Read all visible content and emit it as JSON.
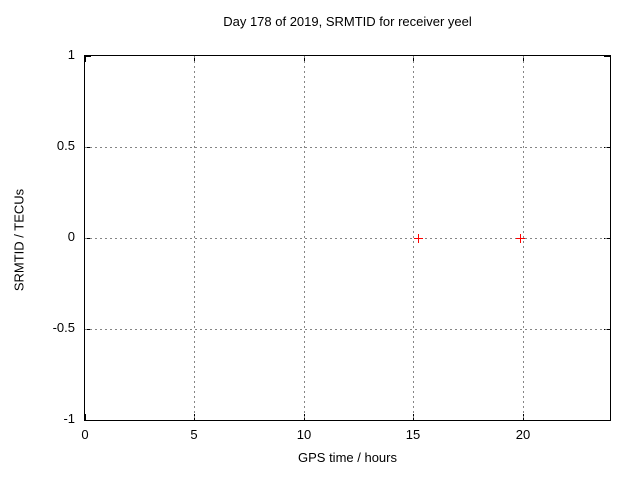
{
  "chart_data": {
    "type": "scatter",
    "title": "Day 178 of 2019, SRMTID for receiver yeel",
    "xlabel": "GPS time / hours",
    "ylabel": "SRMTID / TECUs",
    "xlim": [
      0,
      24
    ],
    "ylim": [
      -1,
      1
    ],
    "xticks": [
      0,
      5,
      10,
      15,
      20
    ],
    "yticks": [
      -1,
      -0.5,
      0,
      0.5,
      1
    ],
    "grid": true,
    "grid_style": "dashed",
    "legend": "none",
    "series": [
      {
        "name": "SRMTID",
        "marker": "plus",
        "color": "#ff0000",
        "points": [
          [
            15.2,
            0
          ],
          [
            19.9,
            0
          ]
        ]
      }
    ],
    "colors": {
      "background": "#ffffff",
      "axis": "#000000",
      "grid": "#858585",
      "text": "#000000",
      "marker": "#ff0000"
    }
  }
}
